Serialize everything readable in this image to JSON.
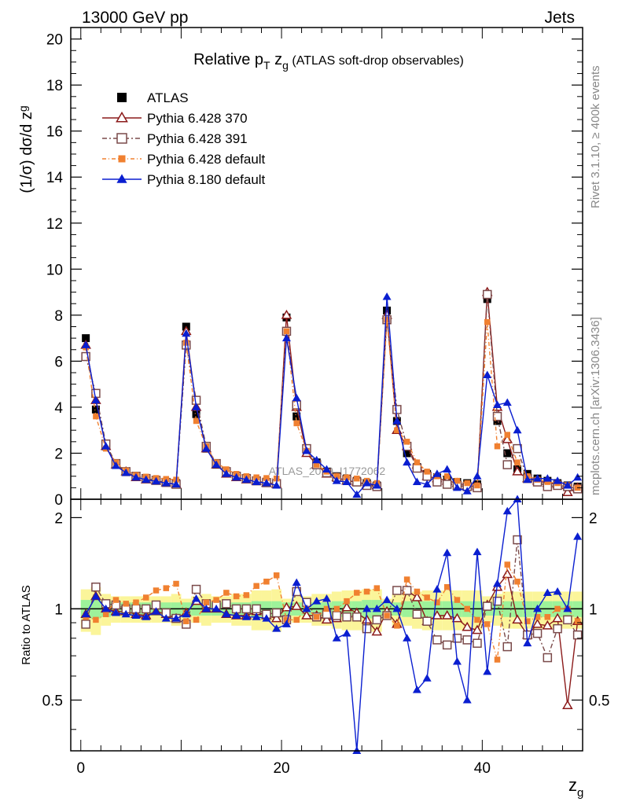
{
  "header": {
    "process": "13000 GeV pp",
    "category": "Jets"
  },
  "side_labels": {
    "rivet": "Rivet 3.1.10, ≥ 400k events",
    "mcplots": "mcplots.cern.ch [arXiv:1306.3436]"
  },
  "watermark": "ATLAS_2019_I1772062",
  "chart_data": [
    {
      "panel": "main",
      "type": "line",
      "title_main": "Relative p",
      "title_sub": "T",
      "title_var": " z",
      "title_var_sub": "g",
      "title_tail": " (ATLAS soft-drop observables)",
      "ylabel": "(1/σ) dσ/d z",
      "ylabel_sub": "g",
      "xlabel": "z",
      "xlabel_sub": "g",
      "xlim": [
        -1,
        50
      ],
      "ylim": [
        0,
        20.5
      ],
      "yticks": [
        0,
        2,
        4,
        6,
        8,
        10,
        12,
        14,
        16,
        18,
        20
      ],
      "x": [
        0.5,
        1.5,
        2.5,
        3.5,
        4.5,
        5.5,
        6.5,
        7.5,
        8.5,
        9.5,
        10.5,
        11.5,
        12.5,
        13.5,
        14.5,
        15.5,
        16.5,
        17.5,
        18.5,
        19.5,
        20.5,
        21.5,
        22.5,
        23.5,
        24.5,
        25.5,
        26.5,
        27.5,
        28.5,
        29.5,
        30.5,
        31.5,
        32.5,
        33.5,
        34.5,
        35.5,
        36.5,
        37.5,
        38.5,
        39.5,
        40.5,
        41.5,
        42.5,
        43.5,
        44.5,
        45.5,
        46.5,
        47.5,
        48.5,
        49.5
      ],
      "legend_position": "top-left",
      "series": [
        {
          "name": "ATLAS",
          "color": "#000000",
          "marker": "square-filled",
          "values": [
            7.0,
            3.9,
            2.3,
            1.5,
            1.2,
            1.0,
            0.9,
            0.8,
            0.75,
            0.7,
            7.5,
            3.7,
            2.2,
            1.5,
            1.15,
            1.0,
            0.9,
            0.8,
            0.75,
            0.7,
            7.9,
            3.6,
            2.1,
            1.6,
            1.2,
            1.0,
            0.9,
            0.8,
            0.7,
            0.6,
            8.2,
            3.4,
            2.0,
            1.4,
            1.1,
            0.95,
            0.85,
            0.75,
            0.7,
            0.65,
            8.7,
            3.4,
            2.0,
            1.3,
            1.1,
            0.9,
            0.8,
            0.7,
            0.6,
            0.55
          ]
        },
        {
          "name": "Pythia 6.428 370",
          "color": "#8b1a1a",
          "marker": "triangle-open",
          "dash": "",
          "values": [
            6.7,
            4.3,
            2.3,
            1.5,
            1.2,
            0.95,
            0.85,
            0.8,
            0.72,
            0.65,
            7.3,
            4.0,
            2.2,
            1.5,
            1.1,
            0.95,
            0.85,
            0.78,
            0.7,
            0.65,
            8.0,
            4.0,
            2.0,
            1.5,
            1.1,
            0.95,
            0.8,
            0.75,
            0.65,
            0.6,
            8.0,
            3.0,
            2.3,
            1.5,
            1.0,
            0.9,
            0.8,
            0.7,
            0.6,
            0.55,
            9.0,
            4.0,
            2.6,
            1.2,
            0.9,
            0.8,
            0.7,
            0.65,
            0.3,
            0.5
          ]
        },
        {
          "name": "Pythia 6.428 391",
          "color": "#7a4a4a",
          "marker": "square-open",
          "dash": "6,3,2,3",
          "values": [
            6.2,
            4.6,
            2.4,
            1.55,
            1.2,
            1.0,
            0.9,
            0.82,
            0.73,
            0.65,
            6.7,
            4.3,
            2.3,
            1.55,
            1.2,
            1.0,
            0.9,
            0.8,
            0.72,
            0.68,
            7.3,
            4.1,
            2.2,
            1.5,
            1.15,
            0.95,
            0.85,
            0.75,
            0.6,
            0.55,
            7.8,
            3.9,
            2.3,
            1.35,
            1.0,
            0.75,
            0.65,
            0.6,
            0.55,
            0.5,
            8.9,
            3.6,
            1.5,
            2.2,
            0.9,
            0.75,
            0.55,
            0.6,
            0.55,
            0.45
          ]
        },
        {
          "name": "Pythia 6.428 default",
          "color": "#f08030",
          "marker": "square-filled-small",
          "dash": "5,3,1,3",
          "values": [
            6.6,
            3.6,
            2.2,
            1.6,
            1.25,
            1.05,
            0.98,
            0.92,
            0.88,
            0.85,
            6.8,
            3.4,
            2.3,
            1.6,
            1.3,
            1.1,
            1.0,
            0.95,
            0.92,
            0.9,
            7.3,
            3.3,
            2.1,
            1.5,
            1.2,
            1.0,
            0.95,
            0.9,
            0.8,
            0.7,
            7.8,
            3.0,
            2.5,
            1.6,
            1.2,
            1.0,
            1.0,
            0.8,
            0.7,
            0.6,
            7.7,
            2.3,
            2.8,
            1.6,
            1.0,
            0.85,
            0.75,
            0.7,
            0.6,
            0.5
          ]
        },
        {
          "name": "Pythia 8.180 default",
          "color": "#0a1ed0",
          "marker": "triangle-filled",
          "dash": "",
          "values": [
            6.7,
            4.3,
            2.3,
            1.45,
            1.15,
            0.95,
            0.85,
            0.78,
            0.7,
            0.65,
            7.2,
            4.0,
            2.2,
            1.5,
            1.1,
            0.95,
            0.85,
            0.75,
            0.7,
            0.6,
            7.0,
            4.4,
            2.1,
            1.7,
            1.3,
            0.8,
            0.75,
            0.2,
            0.7,
            0.6,
            8.8,
            3.4,
            1.6,
            0.75,
            0.65,
            1.1,
            1.3,
            0.5,
            0.35,
            1.0,
            5.4,
            4.1,
            4.2,
            3.0,
            0.85,
            0.9,
            0.9,
            0.8,
            0.6,
            0.95
          ]
        }
      ]
    },
    {
      "panel": "ratio",
      "type": "line",
      "ylabel": "Ratio to ATLAS",
      "ylim": [
        0.34,
        2.3
      ],
      "yscale": "log",
      "yticks": [
        0.5,
        1,
        2
      ],
      "xticks": [
        0,
        20,
        40
      ],
      "x": [
        0.5,
        1.5,
        2.5,
        3.5,
        4.5,
        5.5,
        6.5,
        7.5,
        8.5,
        9.5,
        10.5,
        11.5,
        12.5,
        13.5,
        14.5,
        15.5,
        16.5,
        17.5,
        18.5,
        19.5,
        20.5,
        21.5,
        22.5,
        23.5,
        24.5,
        25.5,
        26.5,
        27.5,
        28.5,
        29.5,
        30.5,
        31.5,
        32.5,
        33.5,
        34.5,
        35.5,
        36.5,
        37.5,
        38.5,
        39.5,
        40.5,
        41.5,
        42.5,
        43.5,
        44.5,
        45.5,
        46.5,
        47.5,
        48.5,
        49.5
      ],
      "band_yellow": [
        0.16,
        0.18,
        0.12,
        0.1,
        0.1,
        0.1,
        0.1,
        0.1,
        0.1,
        0.12,
        0.08,
        0.1,
        0.12,
        0.1,
        0.1,
        0.12,
        0.12,
        0.15,
        0.15,
        0.16,
        0.08,
        0.1,
        0.1,
        0.12,
        0.12,
        0.14,
        0.15,
        0.15,
        0.16,
        0.16,
        0.08,
        0.12,
        0.12,
        0.14,
        0.15,
        0.15,
        0.15,
        0.15,
        0.15,
        0.15,
        0.1,
        0.12,
        0.14,
        0.14,
        0.14,
        0.14,
        0.14,
        0.14,
        0.14,
        0.14
      ],
      "band_green": [
        0.07,
        0.07,
        0.06,
        0.05,
        0.05,
        0.05,
        0.05,
        0.05,
        0.05,
        0.05,
        0.05,
        0.05,
        0.05,
        0.05,
        0.05,
        0.05,
        0.05,
        0.06,
        0.06,
        0.06,
        0.05,
        0.05,
        0.05,
        0.05,
        0.05,
        0.06,
        0.06,
        0.06,
        0.07,
        0.07,
        0.05,
        0.05,
        0.06,
        0.06,
        0.06,
        0.06,
        0.06,
        0.06,
        0.06,
        0.06,
        0.05,
        0.05,
        0.06,
        0.06,
        0.06,
        0.06,
        0.06,
        0.06,
        0.06,
        0.06
      ],
      "series": [
        {
          "name": "Pythia 6.428 370",
          "color": "#8b1a1a",
          "marker": "triangle-open",
          "dash": "",
          "values": [
            0.96,
            1.1,
            1.0,
            0.98,
            0.98,
            0.96,
            0.95,
            0.98,
            0.96,
            0.93,
            0.97,
            1.06,
            1.0,
            1.0,
            0.96,
            0.95,
            0.95,
            0.98,
            0.95,
            0.93,
            1.01,
            1.02,
            0.95,
            0.95,
            0.92,
            0.93,
            1.01,
            0.97,
            0.92,
            0.84,
            0.98,
            0.89,
            1.15,
            1.09,
            0.91,
            0.95,
            0.95,
            0.93,
            0.87,
            0.85,
            1.03,
            1.18,
            1.3,
            0.92,
            0.82,
            0.89,
            0.88,
            0.93,
            0.48,
            0.91
          ]
        },
        {
          "name": "Pythia 6.428 391",
          "color": "#7a4a4a",
          "marker": "square-open",
          "dash": "6,3,2,3",
          "values": [
            0.89,
            1.18,
            1.04,
            1.03,
            1.0,
            1.0,
            1.0,
            1.03,
            0.97,
            0.93,
            0.89,
            1.16,
            1.04,
            1.03,
            1.04,
            1.0,
            1.0,
            1.0,
            0.96,
            0.97,
            0.92,
            1.14,
            1.05,
            0.94,
            0.96,
            0.95,
            0.94,
            0.94,
            0.86,
            0.92,
            0.95,
            1.15,
            1.15,
            0.96,
            0.91,
            0.79,
            0.76,
            0.8,
            0.79,
            0.77,
            1.02,
            1.06,
            0.75,
            1.69,
            0.82,
            0.83,
            0.69,
            0.86,
            0.92,
            0.82
          ]
        },
        {
          "name": "Pythia 6.428 default",
          "color": "#f08030",
          "marker": "square-filled-small",
          "dash": "5,3,1,3",
          "values": [
            0.94,
            0.92,
            0.96,
            1.07,
            1.04,
            1.05,
            1.09,
            1.15,
            1.17,
            1.21,
            0.91,
            0.92,
            1.05,
            1.07,
            1.13,
            1.1,
            1.11,
            1.19,
            1.23,
            1.29,
            0.92,
            0.92,
            1.0,
            0.94,
            1.0,
            1.0,
            1.06,
            1.13,
            1.14,
            1.17,
            0.95,
            0.88,
            1.25,
            1.14,
            1.09,
            1.05,
            1.18,
            1.07,
            1.0,
            0.92,
            0.89,
            0.68,
            1.4,
            1.23,
            0.91,
            0.94,
            0.94,
            1.0,
            1.0,
            0.91
          ]
        },
        {
          "name": "Pythia 8.180 default",
          "color": "#0a1ed0",
          "marker": "triangle-filled",
          "dash": "",
          "values": [
            0.96,
            1.1,
            1.0,
            0.97,
            0.96,
            0.95,
            0.94,
            0.98,
            0.93,
            0.93,
            0.96,
            1.08,
            1.0,
            1.0,
            0.96,
            0.95,
            0.94,
            0.94,
            0.93,
            0.86,
            0.89,
            1.22,
            1.0,
            1.06,
            1.08,
            0.8,
            0.83,
            0.25,
            1.0,
            1.0,
            1.07,
            1.0,
            0.8,
            0.54,
            0.59,
            1.16,
            1.53,
            0.67,
            0.5,
            1.54,
            0.62,
            1.21,
            2.1,
            2.3,
            0.77,
            1.0,
            1.13,
            1.14,
            1.0,
            1.73
          ]
        }
      ]
    }
  ]
}
